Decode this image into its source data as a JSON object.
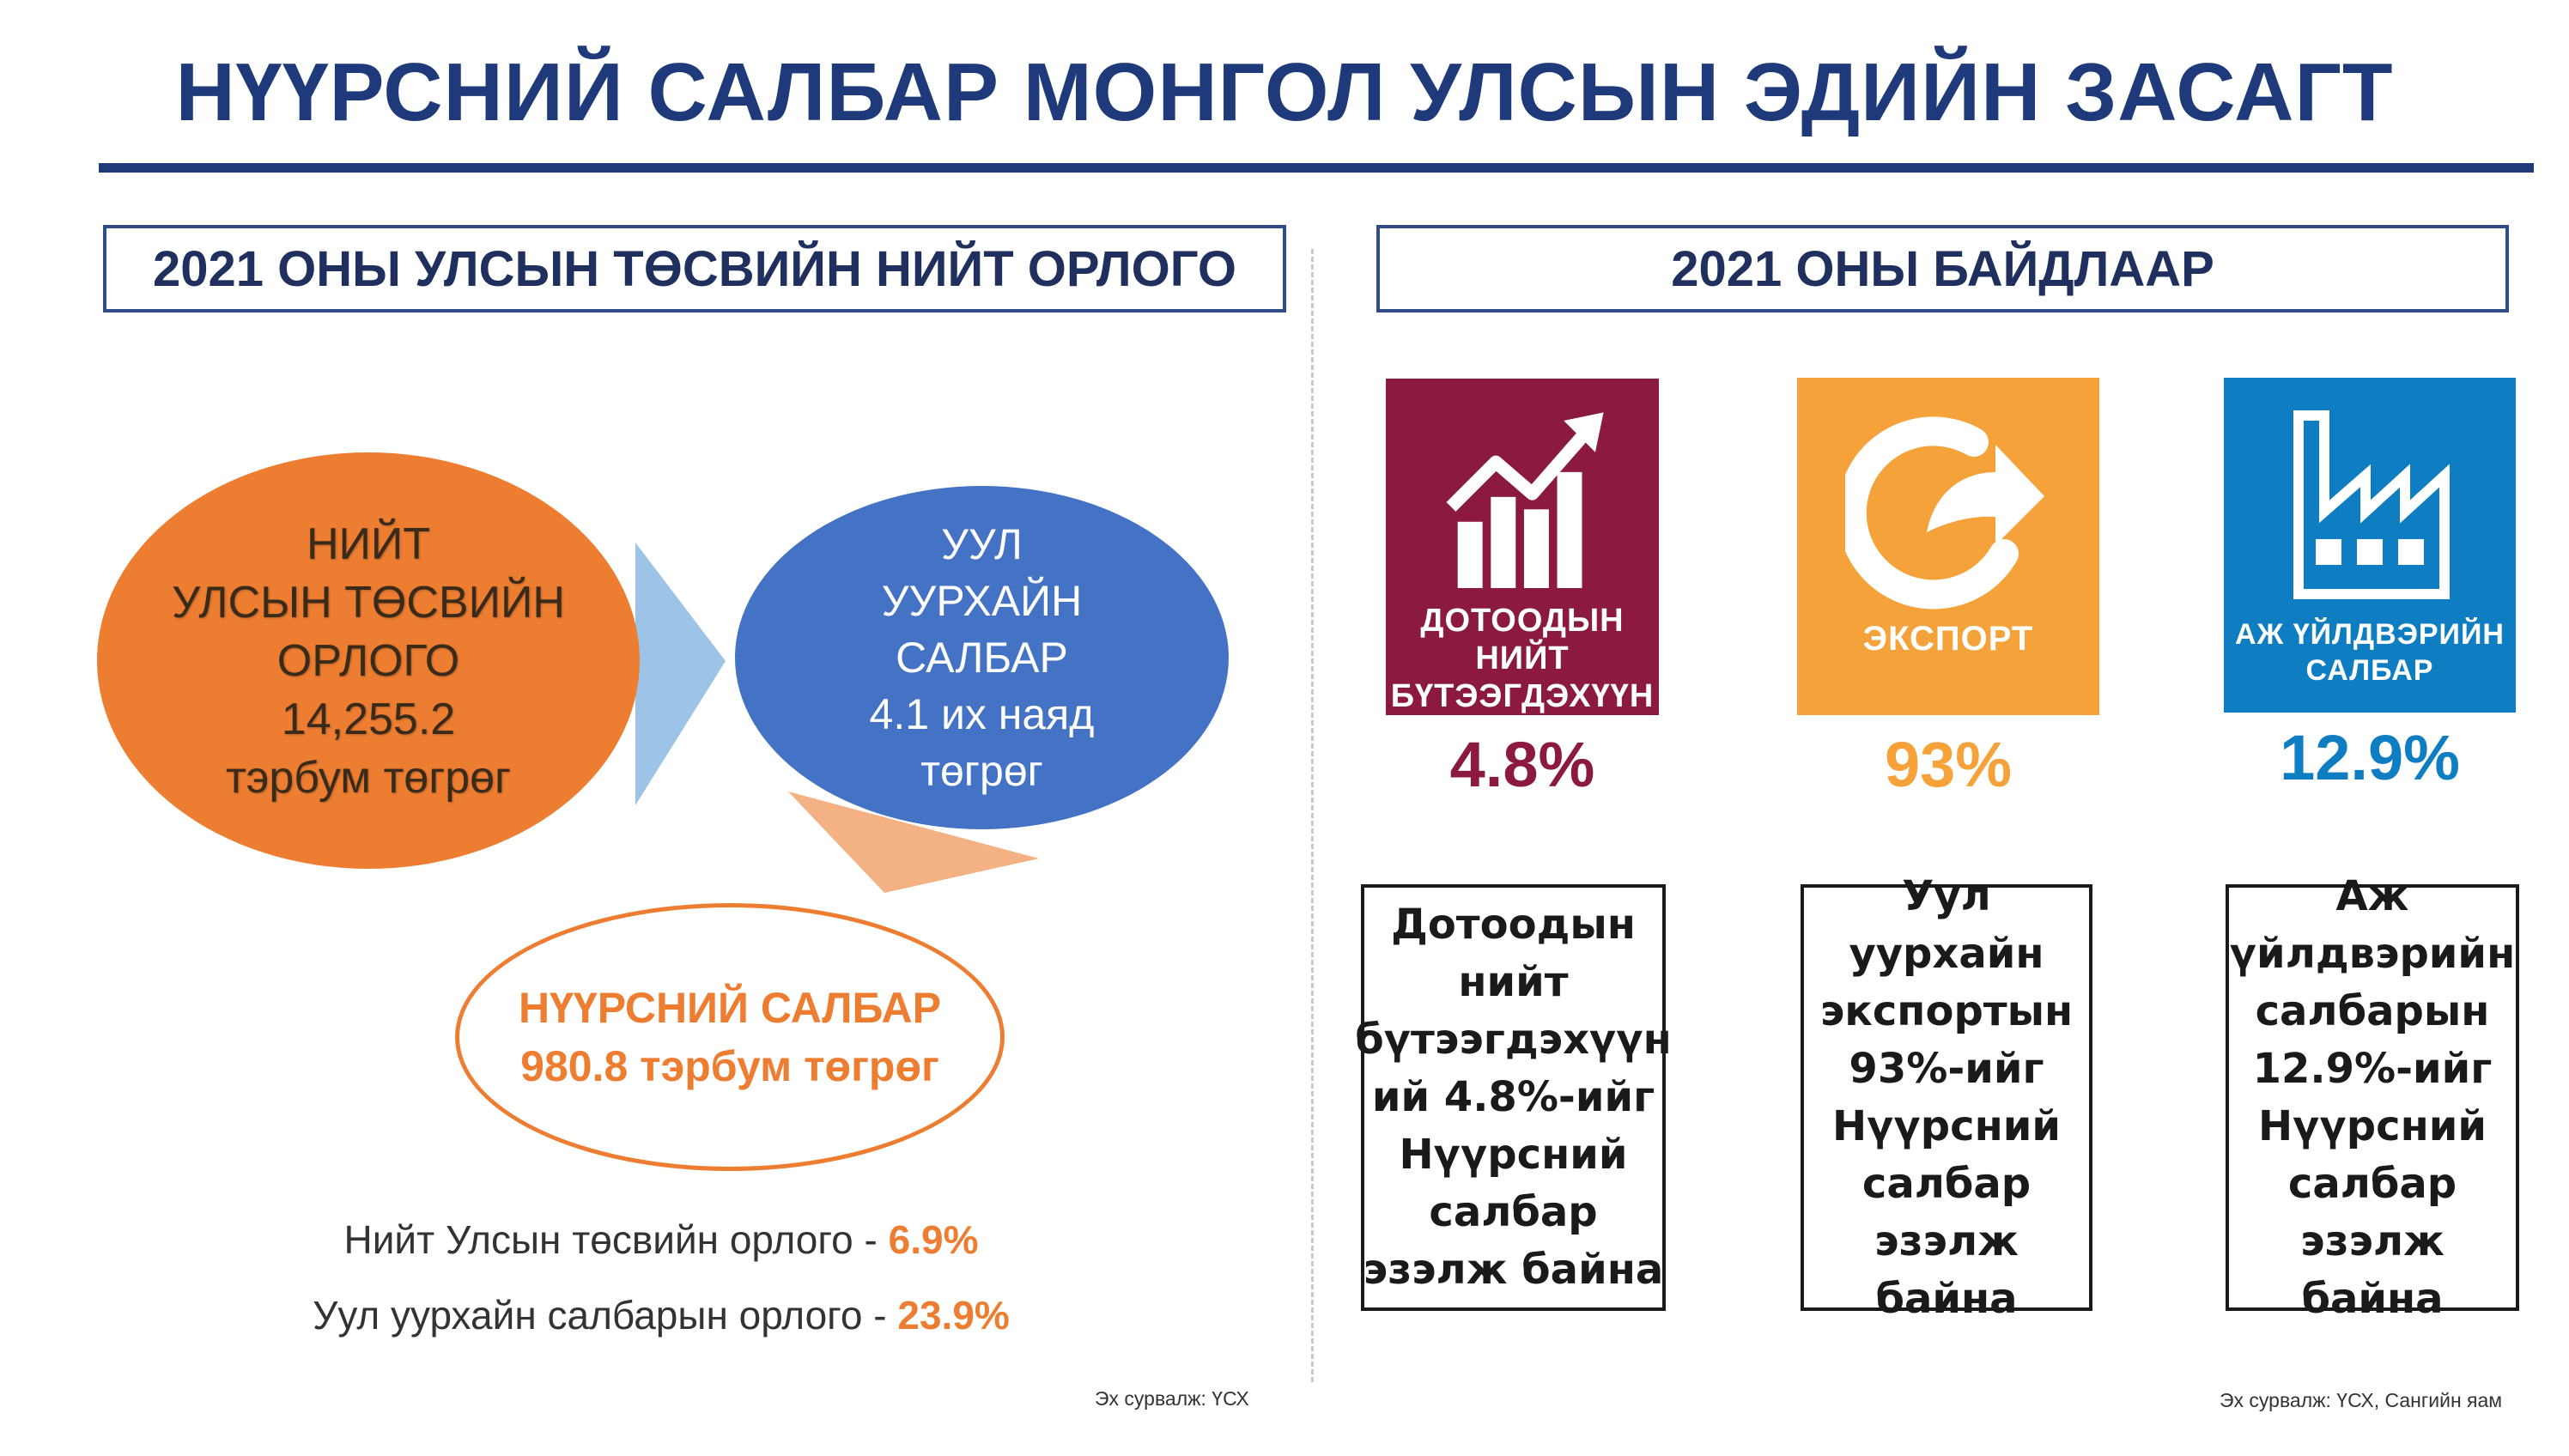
{
  "title": "НҮҮРСНИЙ САЛБАР МОНГОЛ УЛСЫН ЭДИЙН ЗАСАГТ",
  "left_panel": {
    "header": "2021 ОНЫ УЛСЫН ТӨСВИЙН НИЙТ ОРЛОГО",
    "total_revenue": "НИЙТ\nУЛСЫН ТӨСВИЙН\nОРЛОГО\n14,255.2\nтэрбум төгрөг",
    "mining": "УУЛ\nУУРХАЙН\nСАЛБАР\n4.1 их наяд\nтөгрөг",
    "coal": "НҮҮРСНИЙ САЛБАР\n980.8 тэрбум төгрөг",
    "line1_label": "Нийт Улсын төсвийн орлого - ",
    "line1_value": "6.9%",
    "line2_label": "Уул уурхайн салбарын орлого - ",
    "line2_value": "23.9%",
    "source": "Эх сурвалж: ҮСХ"
  },
  "right_panel": {
    "header": "2021 ОНЫ БАЙДЛААР",
    "tiles": [
      {
        "label": "ДОТООДЫН\nНИЙТ\nБҮТЭЭГДЭХҮҮН",
        "value": "4.8%",
        "icon": "growth-chart-icon",
        "color": "#8b1a3e",
        "description": "Дотоодын\nнийт\nбүтээгдэхүүн\nий 4.8%-ийг\nНүүрсний\nсалбар\nэзэлж байна"
      },
      {
        "label": "ЭКСПОРТ",
        "value": "93%",
        "icon": "export-arrow-icon",
        "color": "#f5a23a",
        "description": "Уул уурхайн\nэкспортын\n93%-ийг\nНүүрсний\nсалбар\nэзэлж\nбайна"
      },
      {
        "label": "АЖ ҮЙЛДВЭРИЙН\nСАЛБАР",
        "value": "12.9%",
        "icon": "factory-icon",
        "color": "#0f7dc2",
        "description": "Аж\nүйлдвэрийн\nсалбарын\n12.9%-ийг\nНүүрсний\nсалбар\nэзэлж байна"
      }
    ],
    "source": "Эх сурвалж: ҮСХ, Сангийн яам"
  },
  "colors": {
    "title": "#1f3a7a",
    "orange": "#ed7d31",
    "blue": "#4472c4"
  }
}
